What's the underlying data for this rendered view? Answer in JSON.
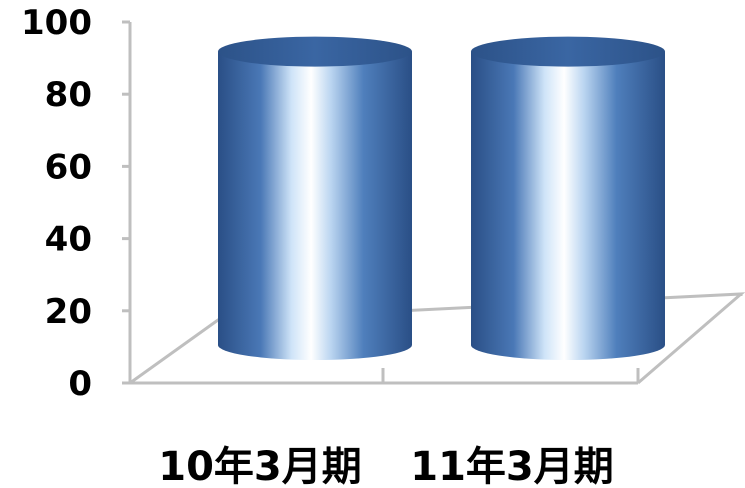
{
  "chart_data": {
    "type": "bar",
    "style": "3d-cylinder",
    "categories": [
      "10年3月期",
      "11年3月期"
    ],
    "values": [
      90,
      90
    ],
    "ylim": [
      0,
      100
    ],
    "yticks": [
      "0",
      "20",
      "40",
      "60",
      "80",
      "100"
    ],
    "grid": false,
    "legend": "none",
    "colors": {
      "bar_dark": "#2f5597",
      "bar_mid": "#4f81bd",
      "bar_light": "#ffffff",
      "axis": "#bfbfbf"
    }
  }
}
